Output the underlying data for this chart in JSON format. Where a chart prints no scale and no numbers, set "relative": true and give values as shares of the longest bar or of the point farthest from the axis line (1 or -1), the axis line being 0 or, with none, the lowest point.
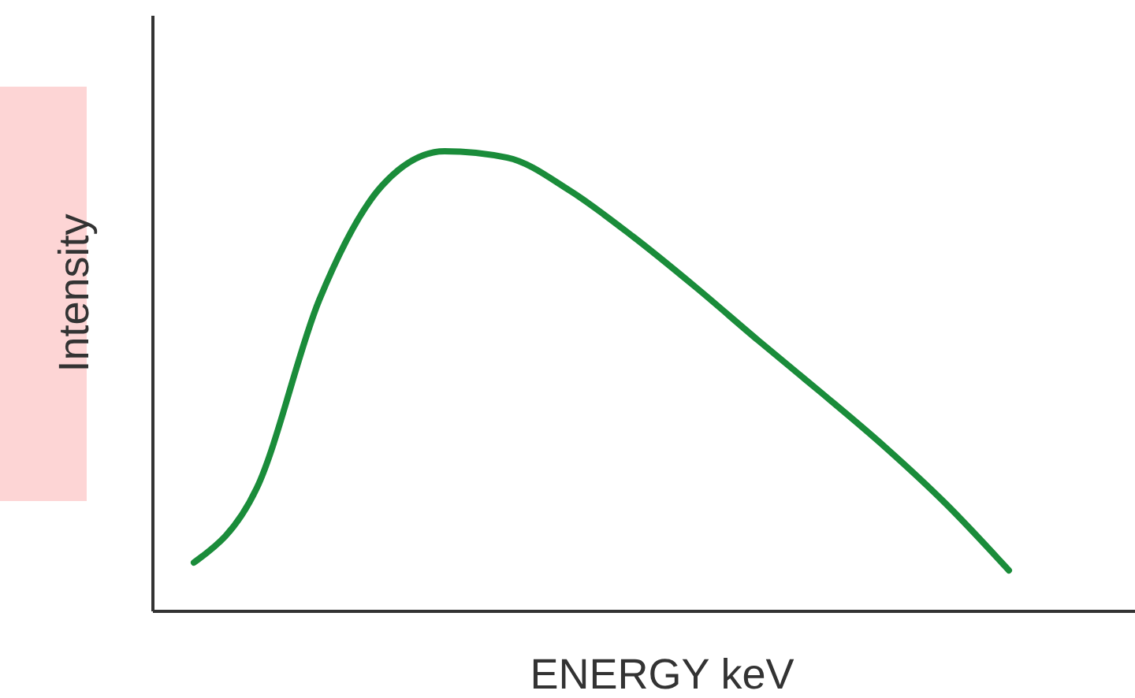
{
  "chart_data": {
    "type": "line",
    "xlabel": "ENERGY keV",
    "ylabel": "Intensity",
    "relative": true,
    "categories": [
      null,
      null,
      null,
      null,
      null,
      null,
      null,
      null,
      null,
      null,
      null,
      null,
      null,
      null
    ],
    "series": [
      {
        "color": "#1a8c3a",
        "values": [
          0.106,
          0.267,
          0.677,
          0.925,
          1,
          0.986,
          0.914,
          0.815,
          0.705,
          0.589,
          0.476,
          0.36,
          0.233,
          0.089
        ]
      }
    ]
  }
}
